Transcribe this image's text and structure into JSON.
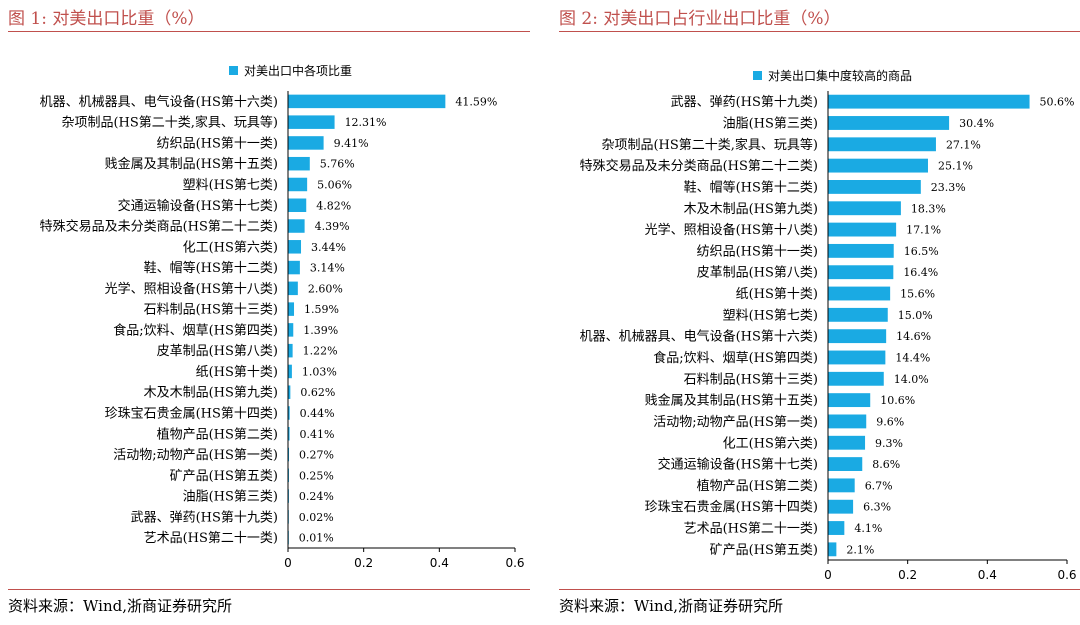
{
  "colors": {
    "bar": "#1aaae3",
    "title": "#c0504d",
    "rule": "#c0504d"
  },
  "fig1": {
    "title": "图 1:   对美出口比重（%）",
    "legend": "对美出口中各项比重",
    "source": "资料来源：Wind,浙商证券研究所"
  },
  "fig2": {
    "title": "图 2:   对美出口占行业出口比重（%）",
    "legend": "对美出口集中度较高的商品",
    "source": "资料来源：Wind,浙商证券研究所"
  },
  "chart_data": [
    {
      "type": "bar",
      "orientation": "horizontal",
      "legend": "对美出口中各项比重",
      "categories": [
        "机器、机械器具、电气设备(HS第十六类)",
        "杂项制品(HS第二十类,家具、玩具等)",
        "纺织品(HS第十一类)",
        "贱金属及其制品(HS第十五类)",
        "塑料(HS第七类)",
        "交通运输设备(HS第十七类)",
        "特殊交易品及未分类商品(HS第二十二类)",
        "化工(HS第六类)",
        "鞋、帽等(HS第十二类)",
        "光学、照相设备(HS第十八类)",
        "石料制品(HS第十三类)",
        "食品;饮料、烟草(HS第四类)",
        "皮革制品(HS第八类)",
        "纸(HS第十类)",
        "木及木制品(HS第九类)",
        "珍珠宝石贵金属(HS第十四类)",
        "植物产品(HS第二类)",
        "活动物;动物产品(HS第一类)",
        "矿产品(HS第五类)",
        "油脂(HS第三类)",
        "武器、弹药(HS第十九类)",
        "艺术品(HS第二十一类)"
      ],
      "values": [
        0.4159,
        0.1231,
        0.0941,
        0.0576,
        0.0506,
        0.0482,
        0.0439,
        0.0344,
        0.0314,
        0.026,
        0.0159,
        0.0139,
        0.0122,
        0.0103,
        0.0062,
        0.0044,
        0.0041,
        0.0027,
        0.0025,
        0.0024,
        0.0002,
        0.0001
      ],
      "labels": [
        "41.59%",
        "12.31%",
        "9.41%",
        "5.76%",
        "5.06%",
        "4.82%",
        "4.39%",
        "3.44%",
        "3.14%",
        "2.60%",
        "1.59%",
        "1.39%",
        "1.22%",
        "1.03%",
        "0.62%",
        "0.44%",
        "0.41%",
        "0.27%",
        "0.25%",
        "0.24%",
        "0.02%",
        "0.01%"
      ],
      "xticks": [
        "0",
        "0.2",
        "0.4",
        "0.6"
      ],
      "xlim": [
        0,
        0.6
      ],
      "grid": false,
      "legend_position": "top"
    },
    {
      "type": "bar",
      "orientation": "horizontal",
      "legend": "对美出口集中度较高的商品",
      "categories": [
        "武器、弹药(HS第十九类)",
        "油脂(HS第三类)",
        "杂项制品(HS第二十类,家具、玩具等)",
        "特殊交易品及未分类商品(HS第二十二类)",
        "鞋、帽等(HS第十二类)",
        "木及木制品(HS第九类)",
        "光学、照相设备(HS第十八类)",
        "纺织品(HS第十一类)",
        "皮革制品(HS第八类)",
        "纸(HS第十类)",
        "塑料(HS第七类)",
        "机器、机械器具、电气设备(HS第十六类)",
        "食品;饮料、烟草(HS第四类)",
        "石料制品(HS第十三类)",
        "贱金属及其制品(HS第十五类)",
        "活动物;动物产品(HS第一类)",
        "化工(HS第六类)",
        "交通运输设备(HS第十七类)",
        "植物产品(HS第二类)",
        "珍珠宝石贵金属(HS第十四类)",
        "艺术品(HS第二十一类)",
        "矿产品(HS第五类)"
      ],
      "values": [
        0.506,
        0.304,
        0.271,
        0.251,
        0.233,
        0.183,
        0.171,
        0.165,
        0.164,
        0.156,
        0.15,
        0.146,
        0.144,
        0.14,
        0.106,
        0.096,
        0.093,
        0.086,
        0.067,
        0.063,
        0.041,
        0.021
      ],
      "labels": [
        "50.6%",
        "30.4%",
        "27.1%",
        "25.1%",
        "23.3%",
        "18.3%",
        "17.1%",
        "16.5%",
        "16.4%",
        "15.6%",
        "15.0%",
        "14.6%",
        "14.4%",
        "14.0%",
        "10.6%",
        "9.6%",
        "9.3%",
        "8.6%",
        "6.7%",
        "6.3%",
        "4.1%",
        "2.1%"
      ],
      "xticks": [
        "0",
        "0.2",
        "0.4",
        "0.6"
      ],
      "xlim": [
        0,
        0.6
      ],
      "grid": false,
      "legend_position": "top"
    }
  ]
}
